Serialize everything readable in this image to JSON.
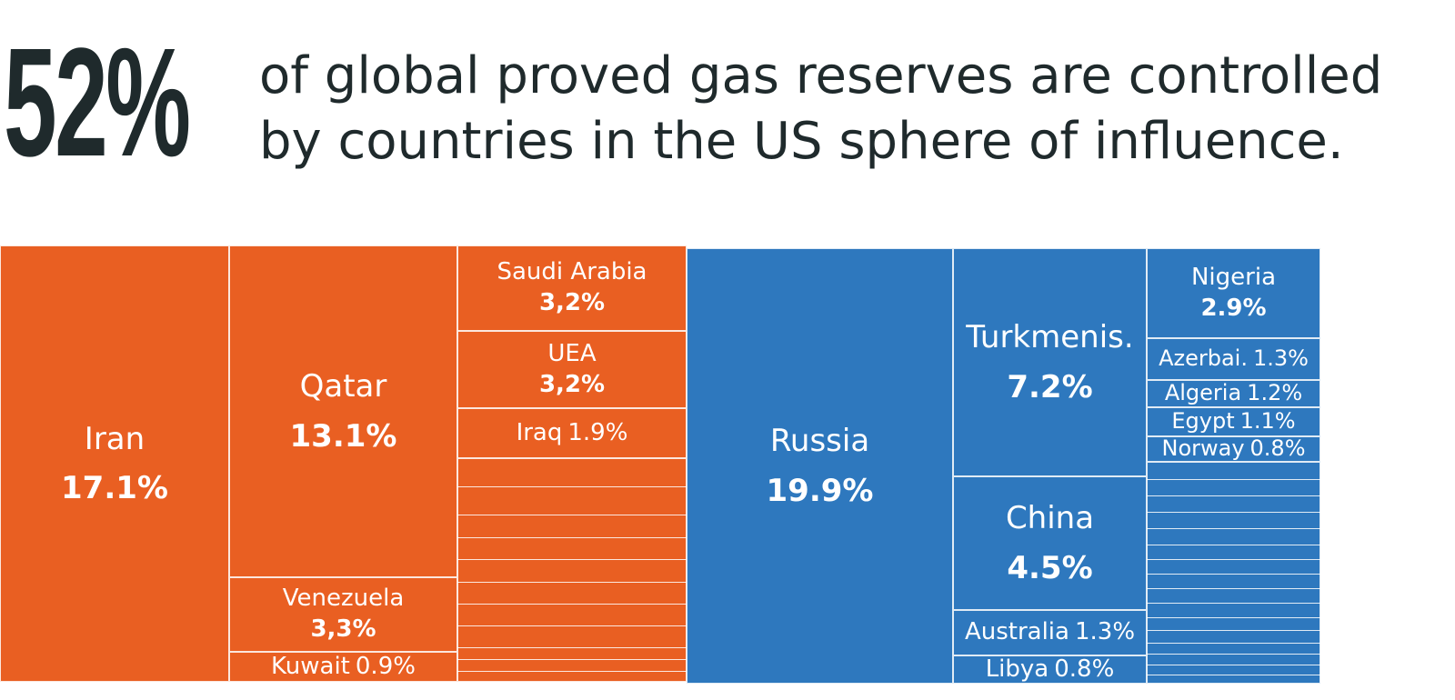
{
  "chart_data": {
    "type": "treemap",
    "title": "52%",
    "subtitle": "of global proved gas reserves are controlled by countries in the US sphere of influence.",
    "series": [
      {
        "color": "#e95f22",
        "categories": [
          "Iran",
          "Qatar",
          "Venezuela",
          "Kuwait",
          "Saudi Arabia",
          "UEA",
          "Iraq"
        ],
        "values": [
          17.1,
          13.1,
          3.3,
          0.9,
          3.2,
          3.2,
          1.9
        ],
        "value_labels": [
          "17.1%",
          "13.1%",
          "3,3%",
          "0.9%",
          "3,2%",
          "3,2%",
          "1.9%"
        ]
      },
      {
        "color": "#2e78be",
        "categories": [
          "Russia",
          "Turkmenis.",
          "China",
          "Australia",
          "Libya",
          "Nigeria",
          "Azerbai.",
          "Algeria",
          "Egypt",
          "Norway"
        ],
        "values": [
          19.9,
          7.2,
          4.5,
          1.3,
          0.8,
          2.9,
          1.3,
          1.2,
          1.1,
          0.8
        ],
        "value_labels": [
          "19.9%",
          "7.2%",
          "4.5%",
          "1.3%",
          "0.8%",
          "2.9%",
          "1.3%",
          "1.2%",
          "1.1%",
          "0.8%"
        ]
      }
    ]
  }
}
